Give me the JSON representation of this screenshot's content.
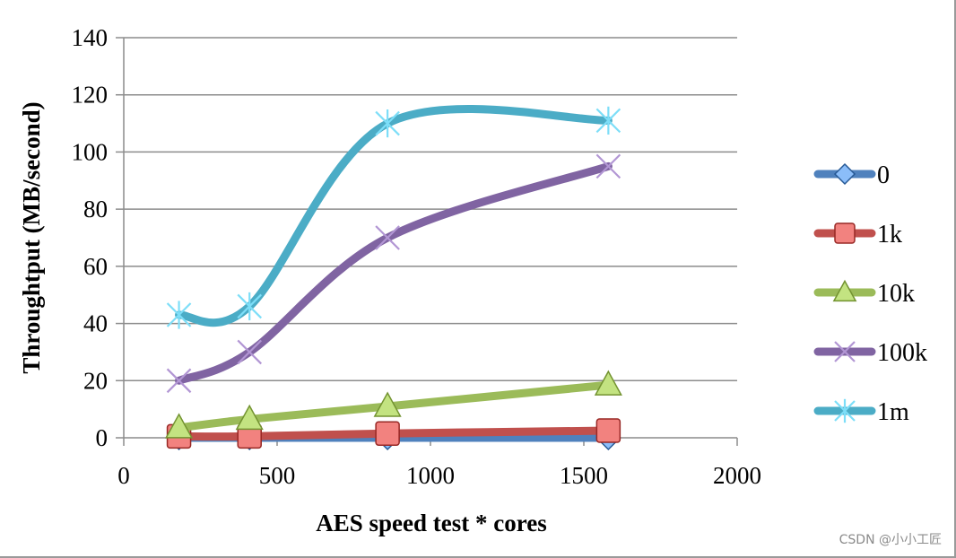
{
  "chart_data": {
    "type": "line",
    "xlabel": "AES speed test * cores",
    "ylabel": "Throughtput (MB/second)",
    "xlim": [
      0,
      2000
    ],
    "ylim": [
      0,
      140
    ],
    "x_ticks": [
      "0",
      "500",
      "1000",
      "1500",
      "2000"
    ],
    "y_ticks": [
      "0",
      "20",
      "40",
      "60",
      "80",
      "100",
      "120",
      "140"
    ],
    "grid": "horizontal",
    "legend_position": "right",
    "series": [
      {
        "name": "0",
        "color": "#4f81bd",
        "marker": "diamond",
        "x": [
          180,
          410,
          860,
          1580
        ],
        "y": [
          0,
          0,
          0,
          0
        ]
      },
      {
        "name": "1k",
        "color": "#c0504d",
        "marker": "square",
        "x": [
          180,
          410,
          860,
          1580
        ],
        "y": [
          0.5,
          0.5,
          1.5,
          2.5
        ]
      },
      {
        "name": "10k",
        "color": "#9bbb59",
        "marker": "triangle",
        "x": [
          180,
          410,
          860,
          1580
        ],
        "y": [
          3.5,
          6.5,
          11,
          18.5
        ]
      },
      {
        "name": "100k",
        "color": "#8064a2",
        "marker": "x",
        "x": [
          180,
          410,
          860,
          1580
        ],
        "y": [
          20,
          30,
          70,
          95
        ]
      },
      {
        "name": "1m",
        "color": "#4bacc6",
        "marker": "star",
        "x": [
          180,
          410,
          860,
          1580
        ],
        "y": [
          43,
          46,
          110,
          111
        ]
      }
    ]
  },
  "watermark": "CSDN @小小工匠"
}
